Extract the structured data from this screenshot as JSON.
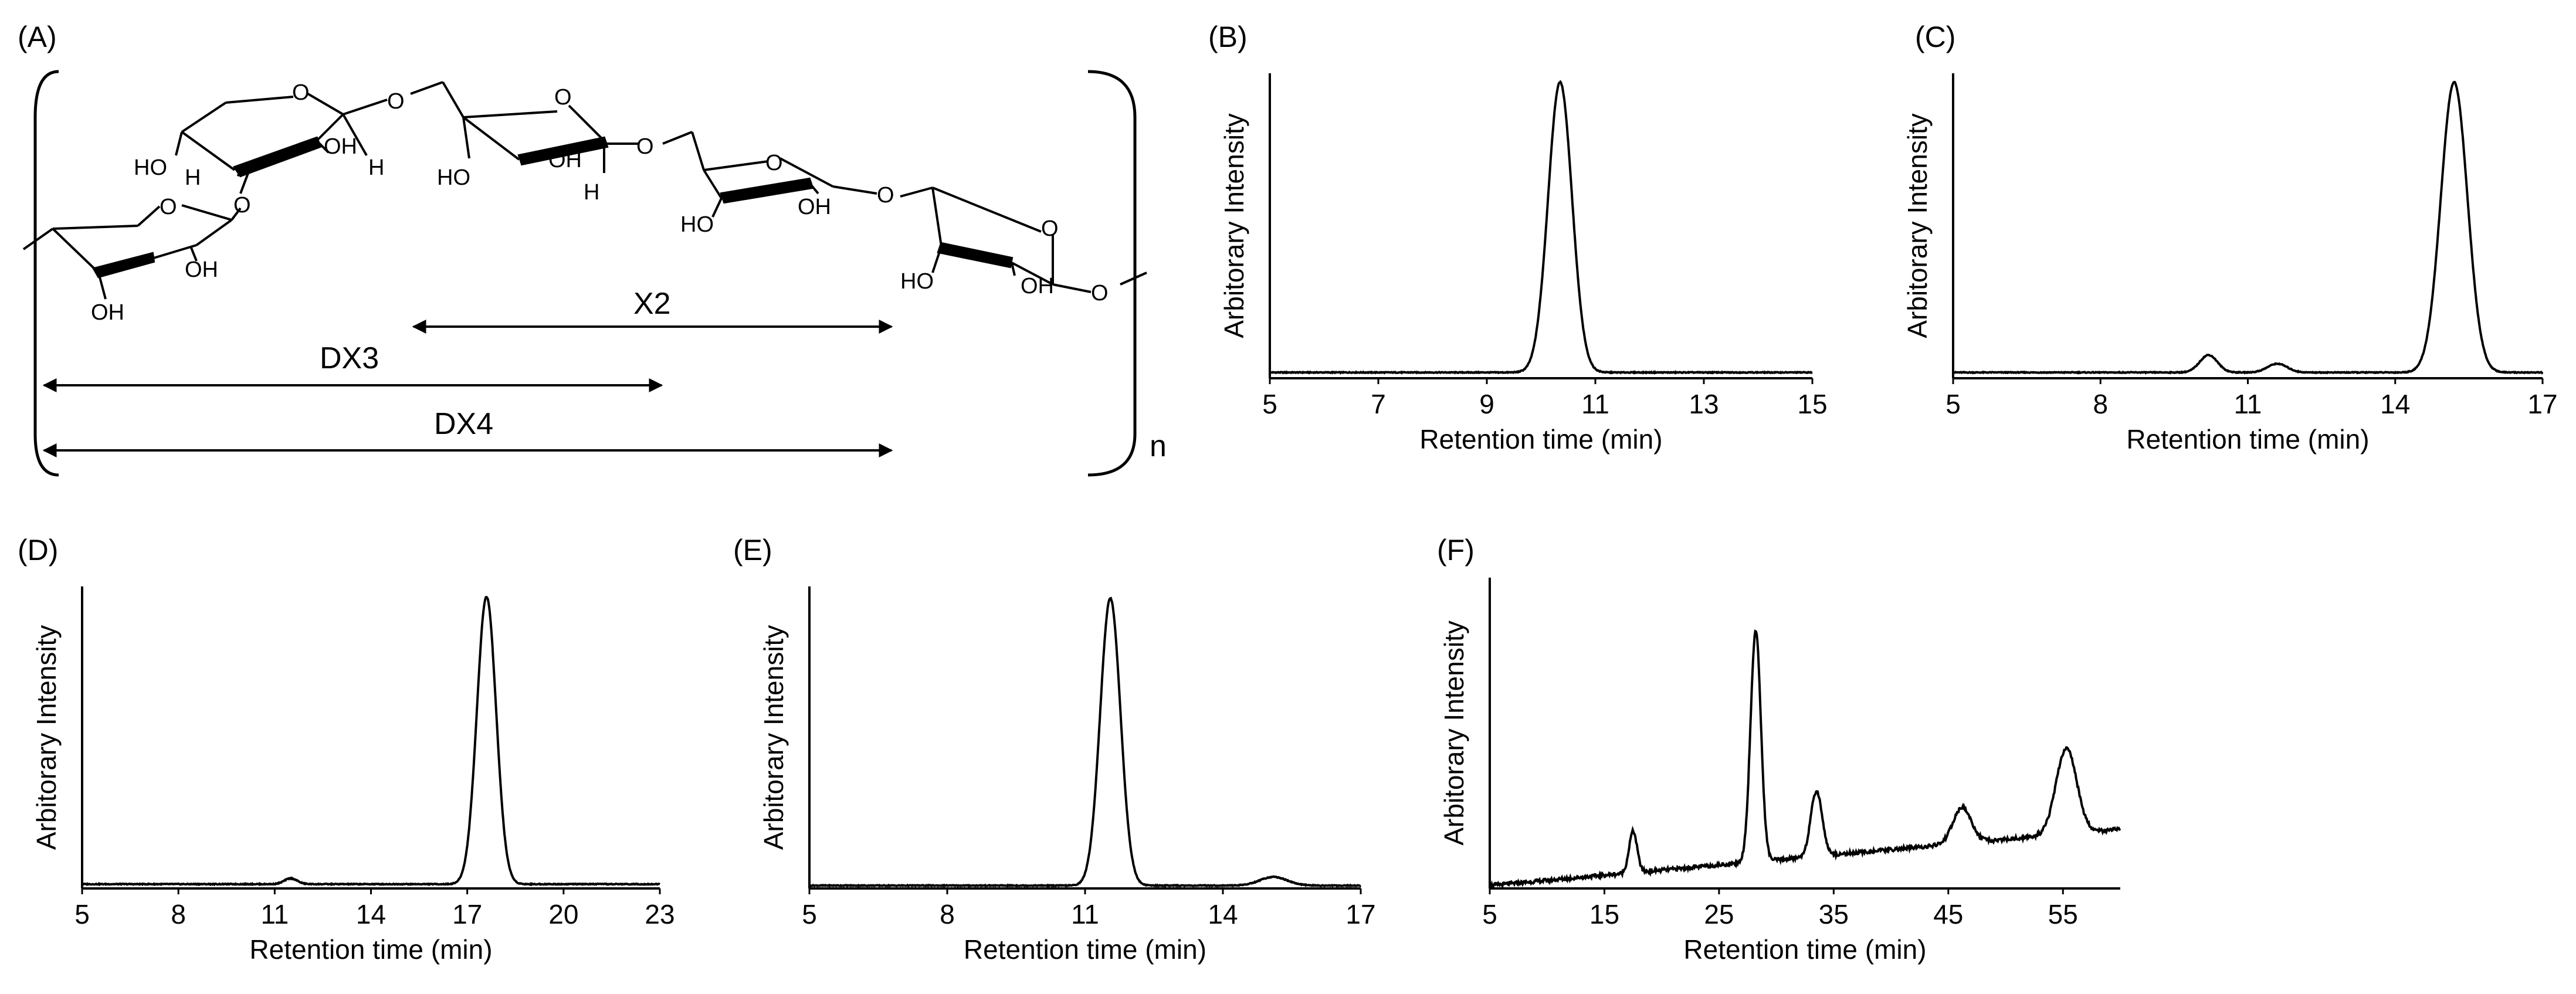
{
  "figure": {
    "panel_labels": [
      "(A)",
      "(B)",
      "(C)",
      "(D)",
      "(E)",
      "(F)"
    ]
  },
  "structure": {
    "repeat_unit_label": "n",
    "bracket_labels": [
      "X2",
      "DX3",
      "DX4"
    ],
    "atom_labels": {
      "O": "O",
      "OH": "OH",
      "HO": "HO",
      "H": "H"
    }
  },
  "chart_data": [
    {
      "id": "B",
      "type": "line",
      "title": "",
      "xlabel": "Retention time (min)",
      "ylabel": "Arbitorary Intensity",
      "xlim": [
        5,
        15
      ],
      "ylim": [
        0,
        1
      ],
      "xticks": [
        5,
        7,
        9,
        11,
        13,
        15
      ],
      "series": [
        {
          "name": "chromatogram",
          "baseline": 0.02,
          "peaks": [
            {
              "center": 10.35,
              "height": 1.0,
              "width": 0.22
            }
          ]
        }
      ]
    },
    {
      "id": "C",
      "type": "line",
      "title": "",
      "xlabel": "Retention time (min)",
      "ylabel": "Arbitorary Intensity",
      "xlim": [
        5,
        17
      ],
      "ylim": [
        0,
        1
      ],
      "xticks": [
        5,
        8,
        11,
        14,
        17
      ],
      "series": [
        {
          "name": "chromatogram",
          "baseline": 0.02,
          "peaks": [
            {
              "center": 10.2,
              "height": 0.06,
              "width": 0.18
            },
            {
              "center": 11.6,
              "height": 0.03,
              "width": 0.2
            },
            {
              "center": 15.2,
              "height": 1.0,
              "width": 0.27
            }
          ]
        }
      ]
    },
    {
      "id": "D",
      "type": "line",
      "title": "",
      "xlabel": "Retention time (min)",
      "ylabel": "Arbitorary Intensity",
      "xlim": [
        5,
        23
      ],
      "ylim": [
        0,
        1
      ],
      "xticks": [
        5,
        8,
        11,
        14,
        17,
        20,
        23
      ],
      "series": [
        {
          "name": "chromatogram",
          "baseline": 0.015,
          "peaks": [
            {
              "center": 11.5,
              "height": 0.02,
              "width": 0.2
            },
            {
              "center": 17.6,
              "height": 1.0,
              "width": 0.3
            }
          ]
        }
      ]
    },
    {
      "id": "E",
      "type": "line",
      "title": "",
      "xlabel": "Retention time (min)",
      "ylabel": "Arbitorary Intensity",
      "xlim": [
        5,
        17
      ],
      "ylim": [
        0,
        1
      ],
      "xticks": [
        5,
        8,
        11,
        14,
        17
      ],
      "series": [
        {
          "name": "chromatogram",
          "baseline": 0.01,
          "peaks": [
            {
              "center": 11.55,
              "height": 1.0,
              "width": 0.22
            },
            {
              "center": 15.1,
              "height": 0.03,
              "width": 0.3
            }
          ]
        }
      ]
    },
    {
      "id": "F",
      "type": "line",
      "title": "",
      "xlabel": "Retention time (min)",
      "ylabel": "Arbitorary Intensity",
      "xlim": [
        5,
        60
      ],
      "ylim": [
        0,
        1
      ],
      "xticks": [
        5,
        15,
        25,
        35,
        45,
        55
      ],
      "series": [
        {
          "name": "chromatogram",
          "baseline_start": 0.01,
          "baseline_end": 0.2,
          "peaks": [
            {
              "center": 17.5,
              "height": 0.14,
              "width": 0.35
            },
            {
              "center": 28.2,
              "height": 0.78,
              "width": 0.45
            },
            {
              "center": 33.5,
              "height": 0.22,
              "width": 0.5
            },
            {
              "center": 46.2,
              "height": 0.12,
              "width": 0.8
            },
            {
              "center": 55.3,
              "height": 0.29,
              "width": 0.9
            }
          ]
        }
      ]
    }
  ]
}
